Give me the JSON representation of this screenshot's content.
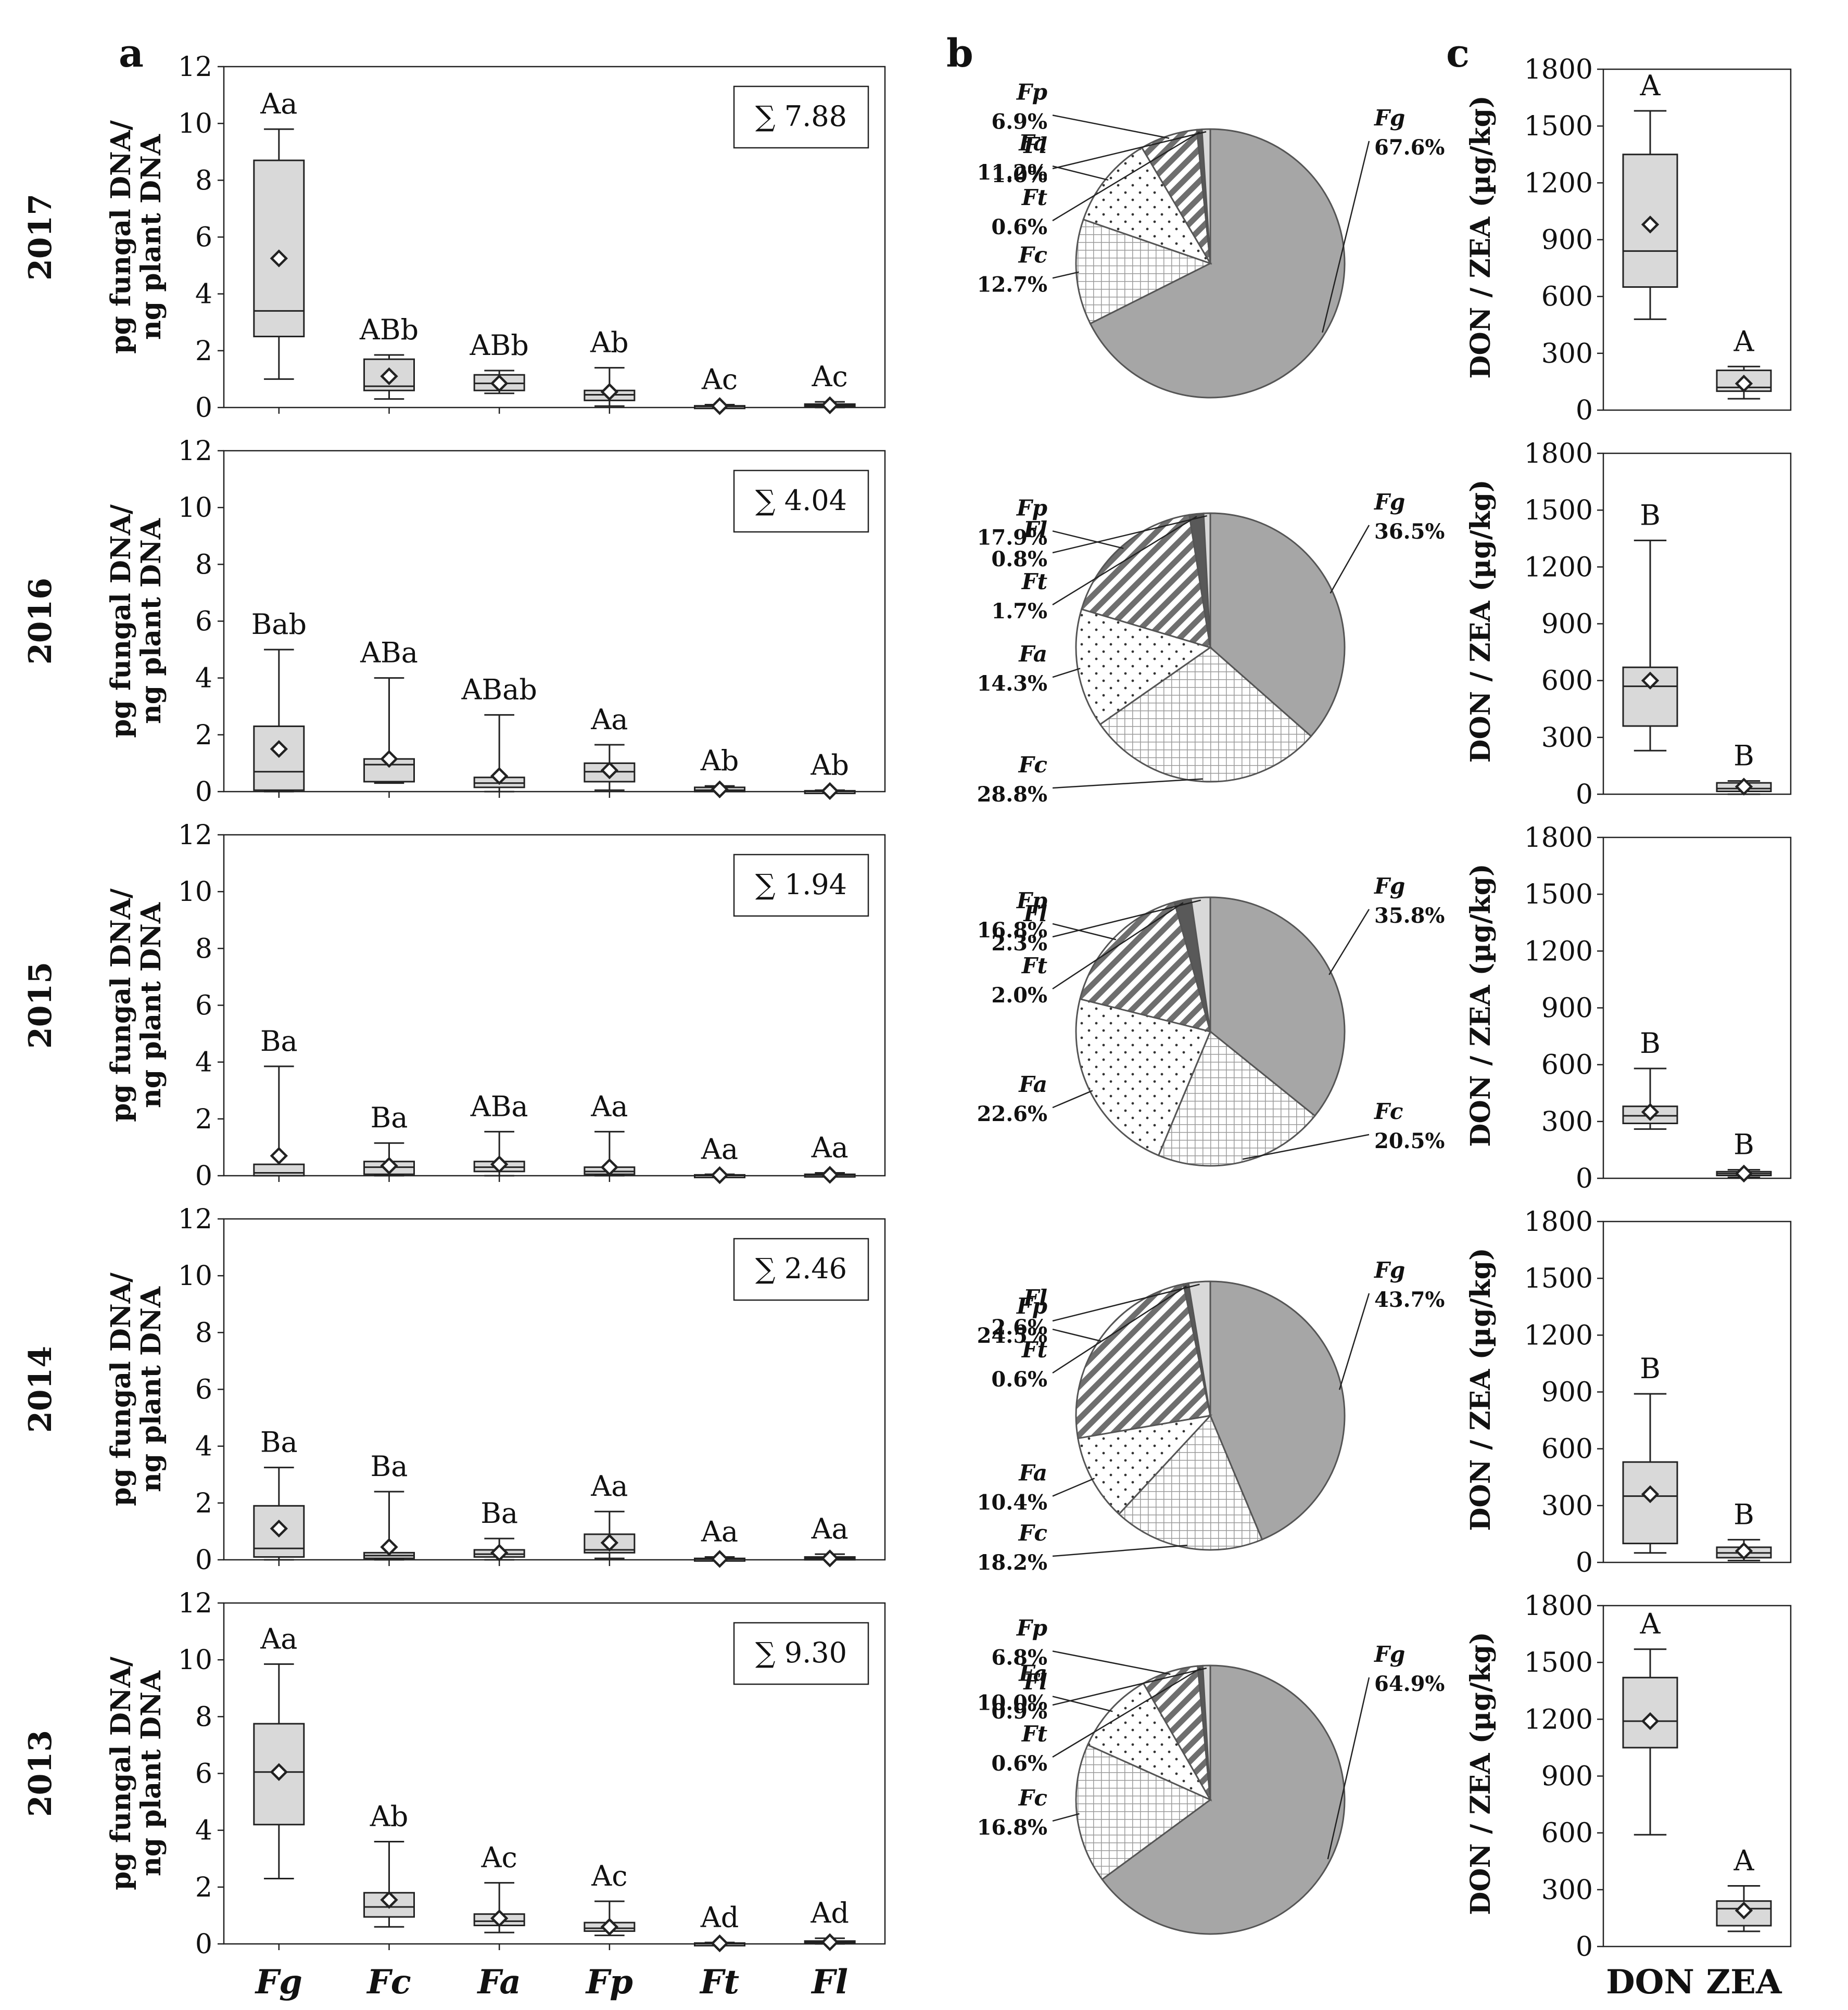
{
  "figure_labels": {
    "a": "a",
    "b": "b",
    "c": "c"
  },
  "colors": {
    "box_fill": "#d9d9d9",
    "fg": "#a6a6a6",
    "ft": "#595959",
    "fl": "#d9d9d9",
    "stroke": "#222222"
  },
  "chart_data": [
    {
      "type": "box",
      "panel": "a",
      "ylabel_line1": "pg fungal DNA/",
      "ylabel_line2": "ng plant DNA",
      "ylim": [
        0,
        12
      ],
      "yticks": [
        "0",
        "2",
        "4",
        "6",
        "8",
        "10",
        "12"
      ],
      "categories": [
        "Fg",
        "Fc",
        "Fa",
        "Fp",
        "Ft",
        "Fl"
      ],
      "years": [
        {
          "year": "2017",
          "sum": "∑ 7.88",
          "groups": [
            {
              "min": 1.0,
              "q1": 2.5,
              "median": 3.4,
              "q3": 8.7,
              "max": 9.8,
              "mean": 5.25,
              "letter": "Aa"
            },
            {
              "min": 0.3,
              "q1": 0.6,
              "median": 0.75,
              "q3": 1.7,
              "max": 1.85,
              "mean": 1.1,
              "letter": "ABb"
            },
            {
              "min": 0.5,
              "q1": 0.6,
              "median": 0.85,
              "q3": 1.15,
              "max": 1.3,
              "mean": 0.85,
              "letter": "ABb"
            },
            {
              "min": 0.05,
              "q1": 0.25,
              "median": 0.45,
              "q3": 0.6,
              "max": 1.4,
              "mean": 0.55,
              "letter": "Ab"
            },
            {
              "min": 0.0,
              "q1": 0.02,
              "median": 0.04,
              "q3": 0.06,
              "max": 0.1,
              "mean": 0.05,
              "letter": "Ac"
            },
            {
              "min": 0.0,
              "q1": 0.05,
              "median": 0.08,
              "q3": 0.12,
              "max": 0.2,
              "mean": 0.08,
              "letter": "Ac"
            }
          ]
        },
        {
          "year": "2016",
          "sum": "∑ 4.04",
          "groups": [
            {
              "min": 0.0,
              "q1": 0.05,
              "median": 0.7,
              "q3": 2.3,
              "max": 5.0,
              "mean": 1.5,
              "letter": "Bab"
            },
            {
              "min": 0.3,
              "q1": 0.35,
              "median": 0.95,
              "q3": 1.15,
              "max": 4.0,
              "mean": 1.15,
              "letter": "ABa"
            },
            {
              "min": 0.0,
              "q1": 0.15,
              "median": 0.3,
              "q3": 0.5,
              "max": 2.7,
              "mean": 0.55,
              "letter": "ABab"
            },
            {
              "min": 0.05,
              "q1": 0.35,
              "median": 0.7,
              "q3": 1.0,
              "max": 1.65,
              "mean": 0.75,
              "letter": "Aa"
            },
            {
              "min": 0.0,
              "q1": 0.0,
              "median": 0.05,
              "q3": 0.15,
              "max": 0.2,
              "mean": 0.08,
              "letter": "Ab"
            },
            {
              "min": 0.0,
              "q1": 0.0,
              "median": 0.01,
              "q3": 0.03,
              "max": 0.05,
              "mean": 0.02,
              "letter": "Ab"
            }
          ]
        },
        {
          "year": "2015",
          "sum": "∑ 1.94",
          "groups": [
            {
              "min": 0.0,
              "q1": 0.0,
              "median": 0.1,
              "q3": 0.4,
              "max": 3.85,
              "mean": 0.7,
              "letter": "Ba"
            },
            {
              "min": 0.0,
              "q1": 0.05,
              "median": 0.3,
              "q3": 0.5,
              "max": 1.15,
              "mean": 0.35,
              "letter": "Ba"
            },
            {
              "min": 0.0,
              "q1": 0.15,
              "median": 0.3,
              "q3": 0.5,
              "max": 1.55,
              "mean": 0.4,
              "letter": "ABa"
            },
            {
              "min": 0.0,
              "q1": 0.05,
              "median": 0.15,
              "q3": 0.3,
              "max": 1.55,
              "mean": 0.3,
              "letter": "Aa"
            },
            {
              "min": 0.0,
              "q1": 0.0,
              "median": 0.01,
              "q3": 0.03,
              "max": 0.05,
              "mean": 0.02,
              "letter": "Aa"
            },
            {
              "min": 0.0,
              "q1": 0.0,
              "median": 0.02,
              "q3": 0.05,
              "max": 0.1,
              "mean": 0.03,
              "letter": "Aa"
            }
          ]
        },
        {
          "year": "2014",
          "sum": "∑ 2.46",
          "groups": [
            {
              "min": 0.0,
              "q1": 0.1,
              "median": 0.4,
              "q3": 1.9,
              "max": 3.25,
              "mean": 1.1,
              "letter": "Ba"
            },
            {
              "min": 0.0,
              "q1": 0.05,
              "median": 0.15,
              "q3": 0.25,
              "max": 2.4,
              "mean": 0.45,
              "letter": "Ba"
            },
            {
              "min": 0.0,
              "q1": 0.1,
              "median": 0.2,
              "q3": 0.35,
              "max": 0.75,
              "mean": 0.25,
              "letter": "Ba"
            },
            {
              "min": 0.05,
              "q1": 0.25,
              "median": 0.35,
              "q3": 0.9,
              "max": 1.7,
              "mean": 0.6,
              "letter": "Aa"
            },
            {
              "min": 0.0,
              "q1": 0.0,
              "median": 0.02,
              "q3": 0.05,
              "max": 0.1,
              "mean": 0.03,
              "letter": "Aa"
            },
            {
              "min": 0.0,
              "q1": 0.0,
              "median": 0.05,
              "q3": 0.1,
              "max": 0.2,
              "mean": 0.05,
              "letter": "Aa"
            }
          ]
        },
        {
          "year": "2013",
          "sum": "∑ 9.30",
          "groups": [
            {
              "min": 2.3,
              "q1": 4.2,
              "median": 6.05,
              "q3": 7.75,
              "max": 9.85,
              "mean": 6.05,
              "letter": "Aa"
            },
            {
              "min": 0.6,
              "q1": 0.95,
              "median": 1.3,
              "q3": 1.8,
              "max": 3.6,
              "mean": 1.55,
              "letter": "Ab"
            },
            {
              "min": 0.4,
              "q1": 0.65,
              "median": 0.8,
              "q3": 1.05,
              "max": 2.15,
              "mean": 0.9,
              "letter": "Ac"
            },
            {
              "min": 0.3,
              "q1": 0.45,
              "median": 0.55,
              "q3": 0.75,
              "max": 1.5,
              "mean": 0.6,
              "letter": "Ac"
            },
            {
              "min": 0.0,
              "q1": 0.0,
              "median": 0.01,
              "q3": 0.03,
              "max": 0.05,
              "mean": 0.02,
              "letter": "Ad"
            },
            {
              "min": 0.0,
              "q1": 0.02,
              "median": 0.05,
              "q3": 0.1,
              "max": 0.2,
              "mean": 0.06,
              "letter": "Ad"
            }
          ]
        }
      ]
    },
    {
      "type": "pie",
      "panel": "b",
      "series_names": [
        "Fg",
        "Fc",
        "Fa",
        "Fp",
        "Ft",
        "Fl"
      ],
      "years": [
        {
          "year": "2017",
          "values": [
            67.6,
            12.7,
            11.2,
            6.9,
            0.6,
            1.0
          ],
          "labels": [
            "67.6%",
            "12.7%",
            "11.2%",
            "6.9%",
            "0.6%",
            "1.0%"
          ]
        },
        {
          "year": "2016",
          "values": [
            36.5,
            28.8,
            14.3,
            17.9,
            1.7,
            0.8
          ],
          "labels": [
            "36.5%",
            "28.8%",
            "14.3%",
            "17.9%",
            "1.7%",
            "0.8%"
          ]
        },
        {
          "year": "2015",
          "values": [
            35.8,
            20.5,
            22.6,
            16.8,
            2.0,
            2.3
          ],
          "labels": [
            "35.8%",
            "20.5%",
            "22.6%",
            "16.8%",
            "2.0%",
            "2.3%"
          ]
        },
        {
          "year": "2014",
          "values": [
            43.7,
            18.2,
            10.4,
            24.5,
            0.6,
            2.6
          ],
          "labels": [
            "43.7%",
            "18.2%",
            "10.4%",
            "24.5%",
            "0.6%",
            "2.6%"
          ]
        },
        {
          "year": "2013",
          "values": [
            64.9,
            16.8,
            10.0,
            6.8,
            0.6,
            0.9
          ],
          "labels": [
            "64.9%",
            "16.8%",
            "10.0%",
            "6.8%",
            "0.6%",
            "0.9%"
          ]
        }
      ]
    },
    {
      "type": "box",
      "panel": "c",
      "ylabel": "DON / ZEA (µg/kg)",
      "ylim": [
        0,
        1800
      ],
      "yticks": [
        "0",
        "300",
        "600",
        "900",
        "1200",
        "1500",
        "1800"
      ],
      "categories": [
        "DON",
        "ZEA"
      ],
      "years": [
        {
          "year": "2017",
          "groups": [
            {
              "min": 480,
              "q1": 650,
              "median": 840,
              "q3": 1350,
              "max": 1580,
              "mean": 980,
              "letter": "A"
            },
            {
              "min": 60,
              "q1": 100,
              "median": 120,
              "q3": 210,
              "max": 230,
              "mean": 140,
              "letter": "A"
            }
          ]
        },
        {
          "year": "2016",
          "groups": [
            {
              "min": 230,
              "q1": 360,
              "median": 570,
              "q3": 670,
              "max": 1340,
              "mean": 600,
              "letter": "B"
            },
            {
              "min": 0,
              "q1": 15,
              "median": 30,
              "q3": 60,
              "max": 70,
              "mean": 40,
              "letter": "B"
            }
          ]
        },
        {
          "year": "2015",
          "groups": [
            {
              "min": 260,
              "q1": 290,
              "median": 330,
              "q3": 380,
              "max": 580,
              "mean": 350,
              "letter": "B"
            },
            {
              "min": 5,
              "q1": 15,
              "median": 25,
              "q3": 35,
              "max": 45,
              "mean": 25,
              "letter": "B"
            }
          ]
        },
        {
          "year": "2014",
          "groups": [
            {
              "min": 50,
              "q1": 100,
              "median": 350,
              "q3": 530,
              "max": 890,
              "mean": 360,
              "letter": "B"
            },
            {
              "min": 10,
              "q1": 25,
              "median": 50,
              "q3": 80,
              "max": 120,
              "mean": 60,
              "letter": "B"
            }
          ]
        },
        {
          "year": "2013",
          "groups": [
            {
              "min": 590,
              "q1": 1050,
              "median": 1190,
              "q3": 1420,
              "max": 1570,
              "mean": 1190,
              "letter": "A"
            },
            {
              "min": 80,
              "q1": 110,
              "median": 200,
              "q3": 240,
              "max": 320,
              "mean": 190,
              "letter": "A"
            }
          ]
        }
      ]
    }
  ]
}
